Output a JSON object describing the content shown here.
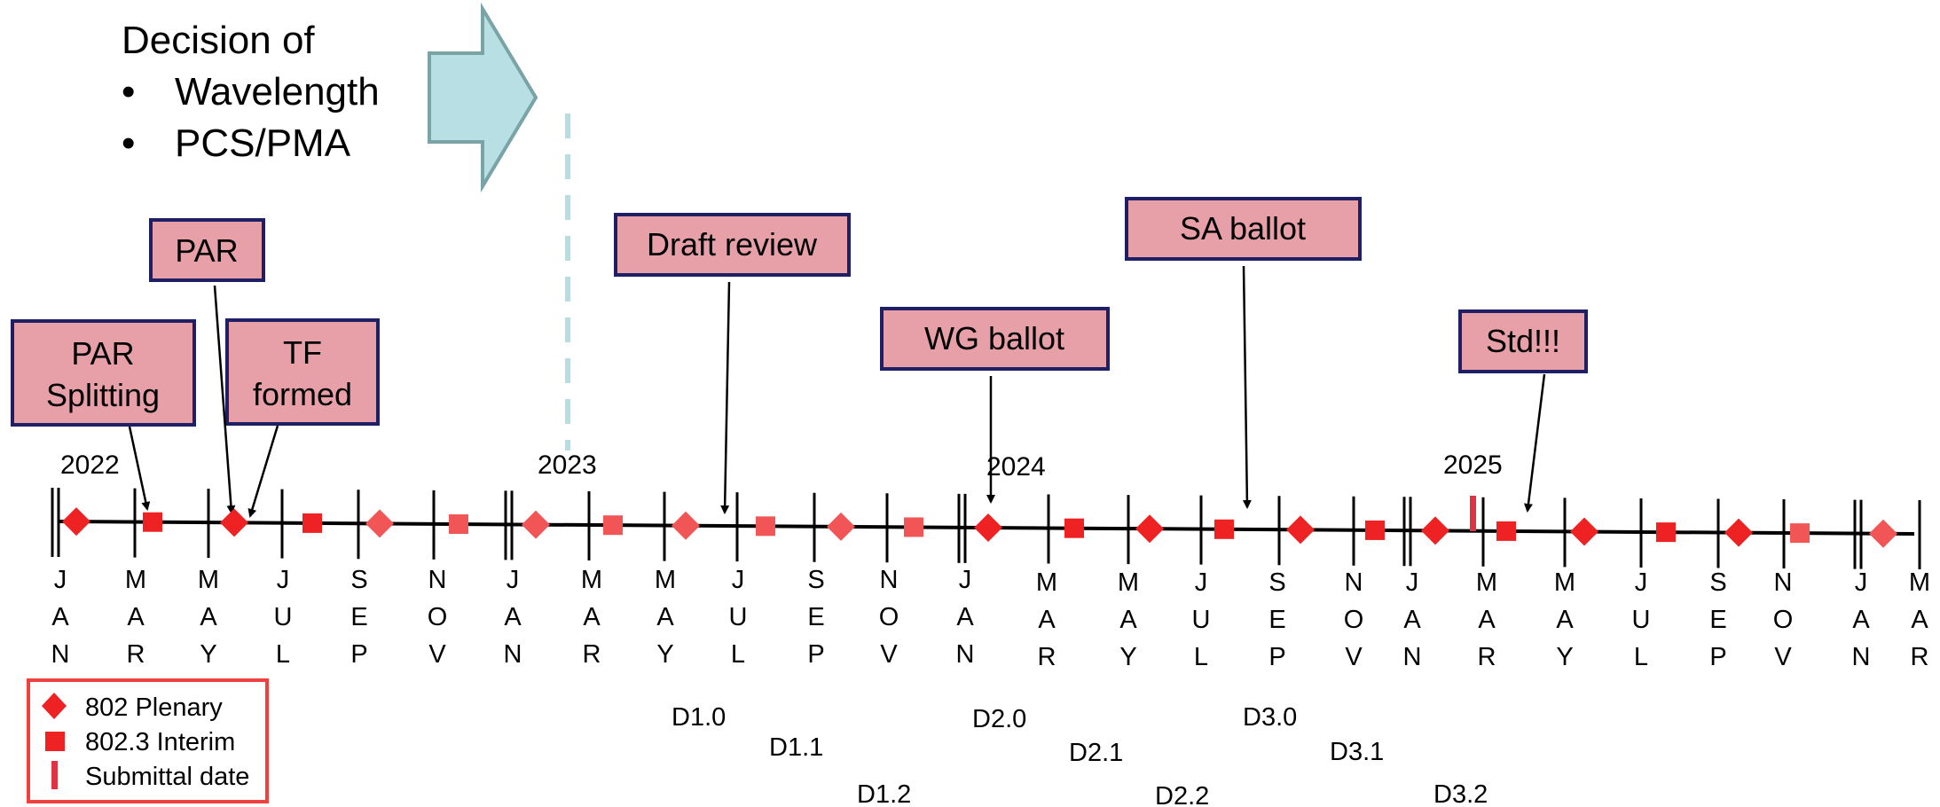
{
  "decision": {
    "title": "Decision of",
    "items": [
      "Wavelength",
      "PCS/PMA"
    ]
  },
  "years": [
    "2022",
    "2023",
    "2024",
    "2025"
  ],
  "months": [
    [
      "J",
      "A",
      "N"
    ],
    [
      "M",
      "A",
      "R"
    ],
    [
      "M",
      "A",
      "Y"
    ],
    [
      "J",
      "U",
      "L"
    ],
    [
      "S",
      "E",
      "P"
    ],
    [
      "N",
      "O",
      "V"
    ],
    [
      "J",
      "A",
      "N"
    ],
    [
      "M",
      "A",
      "R"
    ],
    [
      "M",
      "A",
      "Y"
    ],
    [
      "J",
      "U",
      "L"
    ],
    [
      "S",
      "E",
      "P"
    ],
    [
      "N",
      "O",
      "V"
    ],
    [
      "J",
      "A",
      "N"
    ],
    [
      "M",
      "A",
      "R"
    ],
    [
      "M",
      "A",
      "Y"
    ],
    [
      "J",
      "U",
      "L"
    ],
    [
      "S",
      "E",
      "P"
    ],
    [
      "N",
      "O",
      "V"
    ],
    [
      "J",
      "A",
      "N"
    ],
    [
      "M",
      "A",
      "R"
    ],
    [
      "M",
      "A",
      "Y"
    ],
    [
      "J",
      "U",
      "L"
    ],
    [
      "S",
      "E",
      "P"
    ],
    [
      "N",
      "O",
      "V"
    ],
    [
      "J",
      "A",
      "N"
    ],
    [
      "M",
      "A",
      "R"
    ]
  ],
  "milestones": {
    "par_splitting": [
      "PAR",
      "Splitting"
    ],
    "par": "PAR",
    "tf_formed": [
      "TF",
      "formed"
    ],
    "draft_review": "Draft review",
    "wg_ballot": "WG ballot",
    "sa_ballot": "SA ballot",
    "std": "Std!!!"
  },
  "drafts": [
    "D1.0",
    "D1.1",
    "D1.2",
    "D2.0",
    "D2.1",
    "D2.2",
    "D3.0",
    "D3.1",
    "D3.2"
  ],
  "legend": {
    "plenary": "802 Plenary",
    "interim": "802.3 Interim",
    "submittal": "Submittal date"
  },
  "colors": {
    "box_fill": "#e8a0a8",
    "box_border": "#1f1f66",
    "marker": "#ee2222",
    "marker_light": "#f25555",
    "arrow_fill": "#b8e0e4",
    "arrow_border": "#7aa3a6",
    "dash": "#b8dde0",
    "legend_border": "#f04040"
  }
}
